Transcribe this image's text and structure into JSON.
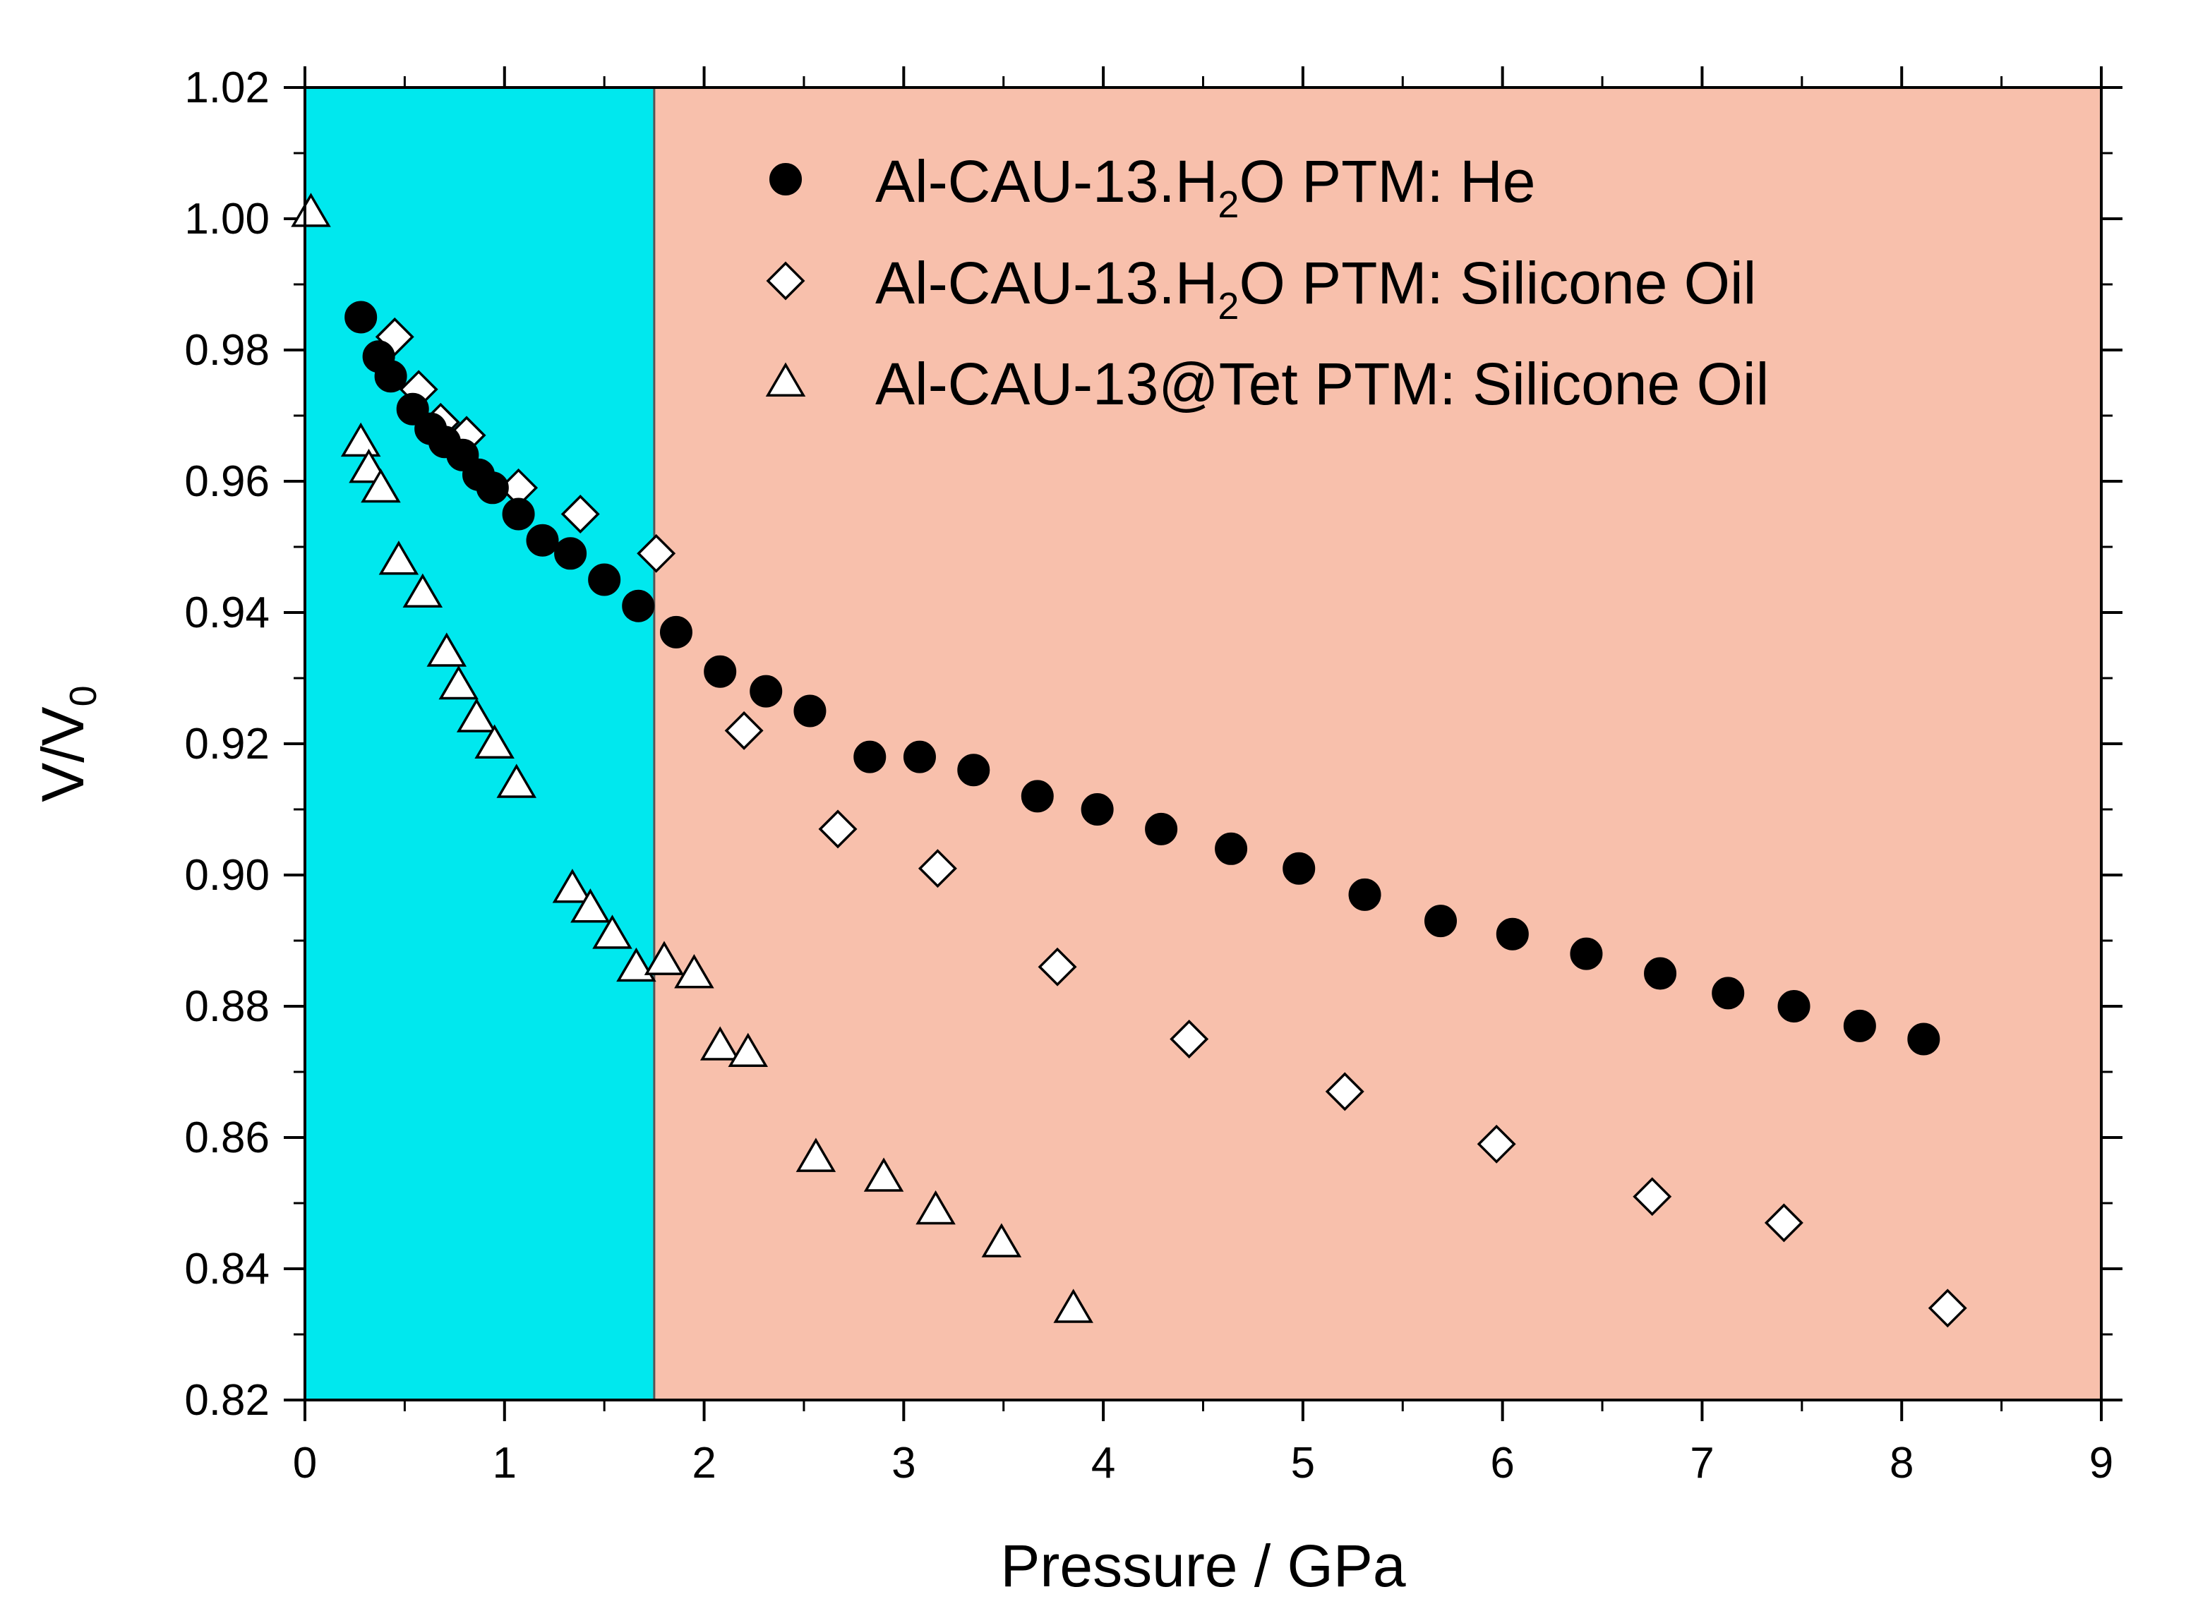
{
  "chart_data": {
    "type": "scatter",
    "title": "",
    "xlabel": "Pressure / GPa",
    "ylabel": "V/V",
    "ylabel_subscript": "0",
    "xlim": [
      0,
      9
    ],
    "ylim": [
      0.82,
      1.02
    ],
    "x_ticks": [
      0,
      1,
      2,
      3,
      4,
      5,
      6,
      7,
      8,
      9
    ],
    "x_tick_labels": [
      "0",
      "1",
      "2",
      "3",
      "4",
      "5",
      "6",
      "7",
      "8",
      "9"
    ],
    "y_ticks": [
      0.82,
      0.84,
      0.86,
      0.88,
      0.9,
      0.92,
      0.94,
      0.96,
      0.98,
      1.0,
      1.02
    ],
    "y_tick_labels": [
      "0.82",
      "0.84",
      "0.86",
      "0.88",
      "0.90",
      "0.92",
      "0.94",
      "0.96",
      "0.98",
      "1.00",
      "1.02"
    ],
    "grid": false,
    "legend_position": "top-right",
    "regions": [
      {
        "x_start": 0,
        "x_end": 1.75,
        "color": "#00e8ee"
      },
      {
        "x_start": 1.75,
        "x_end": 9,
        "color": "#f8c0ac"
      }
    ],
    "series": [
      {
        "name": "Al-CAU-13.H2O PTM: He",
        "legend_parts": [
          "Al-CAU-13.H",
          "2",
          "O PTM: He"
        ],
        "marker": "circle-filled",
        "color": "#000000",
        "x": [
          0.28,
          0.37,
          0.43,
          0.54,
          0.63,
          0.7,
          0.79,
          0.87,
          0.94,
          1.07,
          1.19,
          1.33,
          1.5,
          1.67,
          1.86,
          2.08,
          2.31,
          2.53,
          2.83,
          3.08,
          3.35,
          3.67,
          3.97,
          4.29,
          4.64,
          4.98,
          5.31,
          5.69,
          6.05,
          6.42,
          6.79,
          7.13,
          7.46,
          7.79,
          8.11
        ],
        "y": [
          0.985,
          0.979,
          0.976,
          0.971,
          0.968,
          0.966,
          0.964,
          0.961,
          0.959,
          0.955,
          0.951,
          0.949,
          0.945,
          0.941,
          0.937,
          0.931,
          0.928,
          0.925,
          0.918,
          0.918,
          0.916,
          0.912,
          0.91,
          0.907,
          0.904,
          0.901,
          0.897,
          0.893,
          0.891,
          0.888,
          0.885,
          0.882,
          0.88,
          0.877,
          0.875
        ]
      },
      {
        "name": "Al-CAU-13.H2O PTM: Silicone Oil",
        "legend_parts": [
          "Al-CAU-13.H",
          "2",
          "O PTM: Silicone Oil"
        ],
        "marker": "diamond-open",
        "color": "#000000",
        "x": [
          0.45,
          0.57,
          0.68,
          0.81,
          1.07,
          1.38,
          1.76,
          2.2,
          2.67,
          3.17,
          3.77,
          4.43,
          5.21,
          5.97,
          6.75,
          7.41,
          8.23
        ],
        "y": [
          0.982,
          0.974,
          0.969,
          0.967,
          0.959,
          0.955,
          0.949,
          0.922,
          0.907,
          0.901,
          0.886,
          0.875,
          0.867,
          0.859,
          0.851,
          0.847,
          0.834
        ]
      },
      {
        "name": "Al-CAU-13@Tet PTM: Silicone Oil",
        "legend_parts": [
          "Al-CAU-13@Tet PTM: Silicone Oil",
          "",
          ""
        ],
        "marker": "triangle-open",
        "color": "#000000",
        "x": [
          0.03,
          0.28,
          0.32,
          0.38,
          0.47,
          0.59,
          0.71,
          0.77,
          0.86,
          0.95,
          1.06,
          1.34,
          1.43,
          1.54,
          1.66,
          1.8,
          1.95,
          2.08,
          2.22,
          2.56,
          2.9,
          3.16,
          3.49,
          3.85
        ],
        "y": [
          1.001,
          0.966,
          0.962,
          0.959,
          0.948,
          0.943,
          0.934,
          0.929,
          0.924,
          0.92,
          0.914,
          0.898,
          0.895,
          0.891,
          0.886,
          0.887,
          0.885,
          0.874,
          0.873,
          0.857,
          0.854,
          0.849,
          0.844,
          0.834
        ]
      }
    ]
  }
}
